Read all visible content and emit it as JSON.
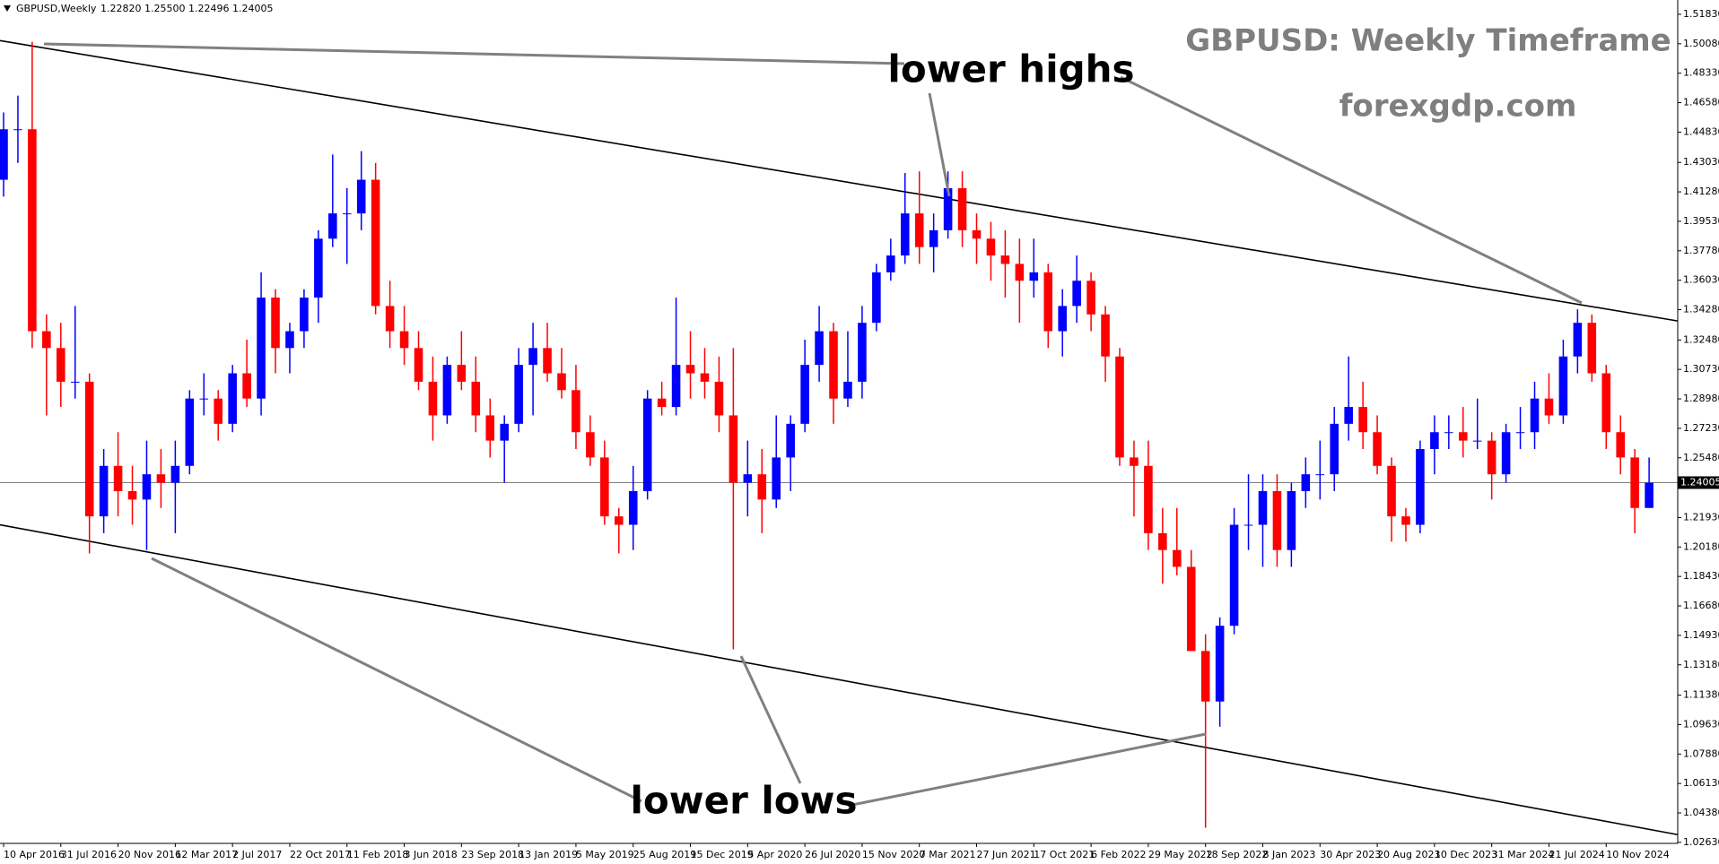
{
  "chart_data": {
    "type": "candlestick",
    "title": "GBPUSD: Weekly Timeframe",
    "subtitle": "forexgdp.com",
    "symbol": "GBPUSD,Weekly",
    "ohlc_header": "1.22820 1.25500 1.22496 1.24005",
    "annotations": [
      "lower highs",
      "lower lows"
    ],
    "up_color": "#0000ff",
    "down_color": "#ff0000",
    "xlim": [
      -1,
      468
    ],
    "ylim": [
      1.0257,
      1.5268
    ],
    "x": [
      0,
      4,
      8,
      12,
      16,
      20,
      24,
      28,
      32,
      36,
      40,
      44,
      48,
      52,
      56,
      60,
      64,
      68,
      72,
      76,
      80,
      84,
      88,
      92,
      96,
      100,
      104,
      108,
      112,
      116,
      120,
      124,
      128,
      132,
      136,
      140,
      144,
      148,
      152,
      156,
      160,
      164,
      168,
      172,
      176,
      180,
      184,
      188,
      192,
      196,
      200,
      204,
      208,
      212,
      216,
      220,
      224,
      228,
      232,
      236,
      240,
      244,
      248,
      252,
      256,
      260,
      264,
      268,
      272,
      276,
      280,
      284,
      288,
      292,
      296,
      300,
      304,
      308,
      312,
      316,
      320,
      324,
      328,
      332,
      336,
      340,
      344,
      348,
      352,
      356,
      360,
      364,
      368,
      372,
      376,
      380,
      384,
      388,
      392,
      396,
      400,
      404,
      408,
      412,
      416,
      420,
      424,
      428,
      432,
      436,
      440,
      444,
      448,
      452,
      456,
      460
    ],
    "open": [
      1.42,
      1.45,
      1.45,
      1.33,
      1.32,
      1.3,
      1.3,
      1.22,
      1.25,
      1.235,
      1.23,
      1.245,
      1.24,
      1.25,
      1.29,
      1.29,
      1.275,
      1.305,
      1.29,
      1.35,
      1.32,
      1.33,
      1.35,
      1.385,
      1.4,
      1.4,
      1.42,
      1.345,
      1.33,
      1.32,
      1.3,
      1.28,
      1.31,
      1.3,
      1.28,
      1.265,
      1.275,
      1.31,
      1.32,
      1.305,
      1.295,
      1.27,
      1.255,
      1.22,
      1.215,
      1.235,
      1.29,
      1.285,
      1.31,
      1.305,
      1.3,
      1.28,
      1.24,
      1.245,
      1.23,
      1.255,
      1.275,
      1.31,
      1.33,
      1.29,
      1.3,
      1.335,
      1.365,
      1.375,
      1.4,
      1.38,
      1.39,
      1.415,
      1.39,
      1.385,
      1.375,
      1.37,
      1.36,
      1.365,
      1.33,
      1.345,
      1.36,
      1.34,
      1.315,
      1.255,
      1.25,
      1.21,
      1.2,
      1.19,
      1.14,
      1.11,
      1.155,
      1.215,
      1.215,
      1.235,
      1.2,
      1.235,
      1.245,
      1.245,
      1.275,
      1.285,
      1.27,
      1.25,
      1.22,
      1.215,
      1.26,
      1.27,
      1.27,
      1.265,
      1.265,
      1.245,
      1.27,
      1.27,
      1.29,
      1.28,
      1.315,
      1.335,
      1.305,
      1.27,
      1.255,
      1.225
    ],
    "high": [
      1.46,
      1.47,
      1.502,
      1.34,
      1.335,
      1.345,
      1.305,
      1.26,
      1.27,
      1.25,
      1.265,
      1.26,
      1.265,
      1.295,
      1.305,
      1.295,
      1.31,
      1.325,
      1.365,
      1.355,
      1.335,
      1.355,
      1.39,
      1.435,
      1.415,
      1.437,
      1.43,
      1.36,
      1.345,
      1.33,
      1.315,
      1.315,
      1.33,
      1.315,
      1.29,
      1.28,
      1.32,
      1.335,
      1.335,
      1.32,
      1.31,
      1.28,
      1.265,
      1.225,
      1.25,
      1.295,
      1.3,
      1.35,
      1.33,
      1.32,
      1.315,
      1.32,
      1.265,
      1.26,
      1.28,
      1.28,
      1.325,
      1.345,
      1.335,
      1.33,
      1.345,
      1.37,
      1.385,
      1.424,
      1.425,
      1.4,
      1.425,
      1.425,
      1.4,
      1.395,
      1.39,
      1.385,
      1.385,
      1.37,
      1.355,
      1.375,
      1.365,
      1.345,
      1.32,
      1.265,
      1.265,
      1.225,
      1.225,
      1.2,
      1.15,
      1.16,
      1.225,
      1.245,
      1.245,
      1.245,
      1.24,
      1.255,
      1.265,
      1.285,
      1.315,
      1.3,
      1.28,
      1.255,
      1.225,
      1.265,
      1.28,
      1.28,
      1.285,
      1.29,
      1.27,
      1.275,
      1.285,
      1.3,
      1.305,
      1.325,
      1.343,
      1.34,
      1.31,
      1.28,
      1.26,
      1.255
    ],
    "low": [
      1.41,
      1.43,
      1.32,
      1.28,
      1.285,
      1.29,
      1.198,
      1.21,
      1.22,
      1.215,
      1.2,
      1.225,
      1.21,
      1.245,
      1.28,
      1.265,
      1.27,
      1.285,
      1.28,
      1.305,
      1.305,
      1.32,
      1.335,
      1.38,
      1.37,
      1.39,
      1.34,
      1.32,
      1.31,
      1.295,
      1.265,
      1.275,
      1.295,
      1.27,
      1.255,
      1.24,
      1.27,
      1.28,
      1.3,
      1.29,
      1.26,
      1.25,
      1.215,
      1.198,
      1.2,
      1.23,
      1.28,
      1.28,
      1.29,
      1.29,
      1.27,
      1.141,
      1.22,
      1.21,
      1.225,
      1.235,
      1.27,
      1.3,
      1.275,
      1.285,
      1.29,
      1.33,
      1.36,
      1.37,
      1.37,
      1.365,
      1.385,
      1.38,
      1.37,
      1.36,
      1.35,
      1.335,
      1.35,
      1.32,
      1.315,
      1.335,
      1.33,
      1.3,
      1.25,
      1.22,
      1.2,
      1.18,
      1.185,
      1.14,
      1.035,
      1.095,
      1.15,
      1.2,
      1.19,
      1.19,
      1.19,
      1.225,
      1.23,
      1.235,
      1.265,
      1.26,
      1.245,
      1.205,
      1.205,
      1.21,
      1.245,
      1.26,
      1.255,
      1.26,
      1.23,
      1.24,
      1.26,
      1.26,
      1.275,
      1.275,
      1.305,
      1.3,
      1.26,
      1.245,
      1.21,
      1.225
    ],
    "close": [
      1.45,
      1.45,
      1.33,
      1.32,
      1.3,
      1.3,
      1.22,
      1.25,
      1.235,
      1.23,
      1.245,
      1.24,
      1.25,
      1.29,
      1.29,
      1.275,
      1.305,
      1.29,
      1.35,
      1.32,
      1.33,
      1.35,
      1.385,
      1.4,
      1.4,
      1.42,
      1.345,
      1.33,
      1.32,
      1.3,
      1.28,
      1.31,
      1.3,
      1.28,
      1.265,
      1.275,
      1.31,
      1.32,
      1.305,
      1.295,
      1.27,
      1.255,
      1.22,
      1.215,
      1.235,
      1.29,
      1.285,
      1.31,
      1.305,
      1.3,
      1.28,
      1.24,
      1.245,
      1.23,
      1.255,
      1.275,
      1.31,
      1.33,
      1.29,
      1.3,
      1.335,
      1.365,
      1.375,
      1.4,
      1.38,
      1.39,
      1.415,
      1.39,
      1.385,
      1.375,
      1.37,
      1.36,
      1.365,
      1.33,
      1.345,
      1.36,
      1.34,
      1.315,
      1.255,
      1.25,
      1.21,
      1.2,
      1.19,
      1.14,
      1.11,
      1.155,
      1.215,
      1.215,
      1.235,
      1.2,
      1.235,
      1.245,
      1.245,
      1.275,
      1.285,
      1.27,
      1.25,
      1.22,
      1.215,
      1.26,
      1.27,
      1.27,
      1.265,
      1.265,
      1.245,
      1.27,
      1.27,
      1.29,
      1.28,
      1.315,
      1.335,
      1.305,
      1.27,
      1.255,
      1.225,
      1.24
    ],
    "xticks": [
      {
        "value": 0,
        "label": "10 Apr 2016"
      },
      {
        "value": 16,
        "label": "31 Jul 2016"
      },
      {
        "value": 32,
        "label": "20 Nov 2016"
      },
      {
        "value": 48,
        "label": "12 Mar 2017"
      },
      {
        "value": 64,
        "label": "2 Jul 2017"
      },
      {
        "value": 80,
        "label": "22 Oct 2017"
      },
      {
        "value": 96,
        "label": "11 Feb 2018"
      },
      {
        "value": 112,
        "label": "3 Jun 2018"
      },
      {
        "value": 128,
        "label": "23 Sep 2018"
      },
      {
        "value": 144,
        "label": "13 Jan 2019"
      },
      {
        "value": 160,
        "label": "5 May 2019"
      },
      {
        "value": 176,
        "label": "25 Aug 2019"
      },
      {
        "value": 192,
        "label": "15 Dec 2019"
      },
      {
        "value": 208,
        "label": "5 Apr 2020"
      },
      {
        "value": 224,
        "label": "26 Jul 2020"
      },
      {
        "value": 240,
        "label": "15 Nov 2020"
      },
      {
        "value": 256,
        "label": "7 Mar 2021"
      },
      {
        "value": 272,
        "label": "27 Jun 2021"
      },
      {
        "value": 288,
        "label": "17 Oct 2021"
      },
      {
        "value": 304,
        "label": "6 Feb 2022"
      },
      {
        "value": 320,
        "label": "29 May 2022"
      },
      {
        "value": 336,
        "label": "18 Sep 2022"
      },
      {
        "value": 352,
        "label": "8 Jan 2023"
      },
      {
        "value": 368,
        "label": "30 Apr 2023"
      },
      {
        "value": 384,
        "label": "20 Aug 2023"
      },
      {
        "value": 400,
        "label": "10 Dec 2023"
      },
      {
        "value": 416,
        "label": "31 Mar 2024"
      },
      {
        "value": 432,
        "label": "21 Jul 2024"
      },
      {
        "value": 448,
        "label": "10 Nov 2024"
      }
    ],
    "yticks": [
      {
        "value": 1.5183,
        "label": "1.51830"
      },
      {
        "value": 1.5008,
        "label": "1.50080"
      },
      {
        "value": 1.4833,
        "label": "1.48330"
      },
      {
        "value": 1.4658,
        "label": "1.46580"
      },
      {
        "value": 1.4483,
        "label": "1.44830"
      },
      {
        "value": 1.4303,
        "label": "1.43030"
      },
      {
        "value": 1.4128,
        "label": "1.41280"
      },
      {
        "value": 1.3953,
        "label": "1.39530"
      },
      {
        "value": 1.3778,
        "label": "1.37780"
      },
      {
        "value": 1.3603,
        "label": "1.36030"
      },
      {
        "value": 1.3428,
        "label": "1.34280"
      },
      {
        "value": 1.3248,
        "label": "1.32480"
      },
      {
        "value": 1.3073,
        "label": "1.30730"
      },
      {
        "value": 1.2898,
        "label": "1.28980"
      },
      {
        "value": 1.2723,
        "label": "1.27230"
      },
      {
        "value": 1.2548,
        "label": "1.25480"
      },
      {
        "value": 1.2193,
        "label": "1.21930"
      },
      {
        "value": 1.2018,
        "label": "1.20180"
      },
      {
        "value": 1.1843,
        "label": "1.18430"
      },
      {
        "value": 1.1668,
        "label": "1.16680"
      },
      {
        "value": 1.1493,
        "label": "1.14930"
      },
      {
        "value": 1.1318,
        "label": "1.13180"
      },
      {
        "value": 1.1138,
        "label": "1.11380"
      },
      {
        "value": 1.0963,
        "label": "1.09630"
      },
      {
        "value": 1.0788,
        "label": "1.07880"
      },
      {
        "value": 1.0613,
        "label": "1.06130"
      },
      {
        "value": 1.0438,
        "label": "1.04380"
      },
      {
        "value": 1.0263,
        "label": "1.02630"
      }
    ],
    "current_price": {
      "value": 1.24005,
      "label": "1.24005"
    },
    "trendlines": [
      {
        "x": [
          -1,
          468
        ],
        "y": [
          1.5027,
          1.3361
        ]
      },
      {
        "x": [
          -1,
          468
        ],
        "y": [
          1.215,
          1.0309
        ]
      }
    ]
  }
}
